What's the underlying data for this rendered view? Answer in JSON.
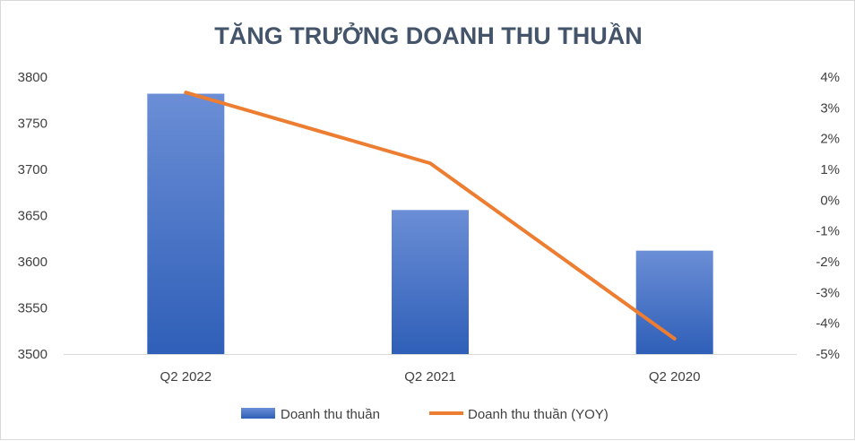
{
  "chart_data": {
    "type": "bar",
    "title": "TĂNG TRƯỞNG DOANH THU THUẦN",
    "categories": [
      "Q2 2022",
      "Q2 2021",
      "Q2 2020"
    ],
    "series": [
      {
        "name": "Doanh thu thuần",
        "type": "bar",
        "axis": "left",
        "values": [
          3782,
          3656,
          3612
        ],
        "color": "#4472c4"
      },
      {
        "name": "Doanh thu thuần (YOY)",
        "type": "line",
        "axis": "right",
        "values": [
          3.5,
          1.2,
          -4.5
        ],
        "color": "#ed7d31"
      }
    ],
    "y_left": {
      "ylim": [
        3500,
        3800
      ],
      "ticks": [
        "3800",
        "3750",
        "3700",
        "3650",
        "3600",
        "3550",
        "3500"
      ]
    },
    "y_right": {
      "ylim": [
        -5,
        4
      ],
      "ticks": [
        "4%",
        "3%",
        "2%",
        "1%",
        "0%",
        "-1%",
        "-2%",
        "-3%",
        "-4%",
        "-5%"
      ]
    },
    "legend_position": "bottom",
    "grid": false
  }
}
